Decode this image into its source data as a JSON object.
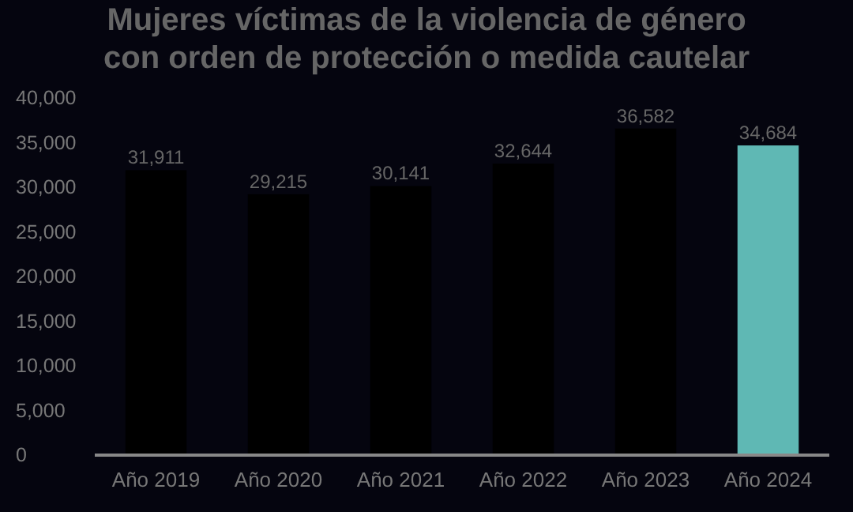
{
  "chart_data": {
    "type": "bar",
    "title": "Mujeres víctimas de la violencia de género\ncon orden de protección o medida cautelar",
    "categories": [
      "Año 2019",
      "Año 2020",
      "Año 2021",
      "Año 2022",
      "Año 2023",
      "Año 2024"
    ],
    "values": [
      31911,
      29215,
      30141,
      32644,
      36582,
      34684
    ],
    "colors": [
      "#000000",
      "#000000",
      "#000000",
      "#000000",
      "#000000",
      "#5fb8b4"
    ],
    "ylim": [
      0,
      40000
    ],
    "yticks": [
      {
        "value": 0,
        "label": "0"
      },
      {
        "value": 5000,
        "label": "5,000"
      },
      {
        "value": 10000,
        "label": "10,000"
      },
      {
        "value": 15000,
        "label": "15,000"
      },
      {
        "value": 20000,
        "label": "20,000"
      },
      {
        "value": 25000,
        "label": "25,000"
      },
      {
        "value": 30000,
        "label": "30,000"
      },
      {
        "value": 35000,
        "label": "35,000"
      },
      {
        "value": 40000,
        "label": "40,000"
      }
    ],
    "value_labels": [
      "31,911",
      "29,215",
      "30,141",
      "32,644",
      "36,582",
      "34,684"
    ]
  }
}
